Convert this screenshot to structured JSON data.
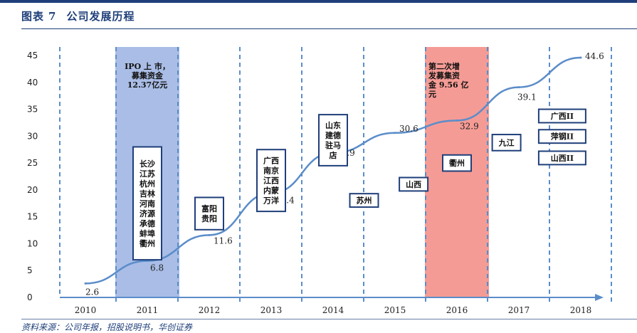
{
  "figure": {
    "label": "图表",
    "number": "7",
    "title": "公司发展历程"
  },
  "source": "资料来源：公司年报，招股说明书，华创证券",
  "colors": {
    "title": "#1f3f7a",
    "line": "#5b8dc9",
    "grid": "#5b8dc9",
    "highlight_blue": "#a9bde6",
    "highlight_red": "#f59b95",
    "box_border": "#1f3f7a"
  },
  "chart_data": {
    "type": "line",
    "title": "",
    "xlabel": "",
    "ylabel": "",
    "x": [
      2010,
      2011,
      2012,
      2013,
      2014,
      2015,
      2016,
      2017,
      2018
    ],
    "xlim": [
      2010,
      2018
    ],
    "ylim": [
      0,
      45
    ],
    "yticks": [
      0,
      5,
      10,
      15,
      20,
      25,
      30,
      35,
      40,
      45
    ],
    "grid": "vertical dashed lines per year",
    "series": [
      {
        "values": [
          2.6,
          6.8,
          11.6,
          19.4,
          26.9,
          30.6,
          32.9,
          39.1,
          44.6
        ],
        "labels": [
          "2.6",
          "6.8",
          "11.6",
          "19.4",
          "26.9",
          "30.6",
          "32.9",
          "39.1",
          "44.6"
        ]
      }
    ],
    "highlights": [
      {
        "year": 2011,
        "color": "blue",
        "text": [
          "IPO 上 市，",
          "募集资金",
          "12.37亿元"
        ]
      },
      {
        "year": 2016,
        "color": "red",
        "text": [
          "第二次增",
          "发募集资",
          "金 9.56 亿",
          "元"
        ]
      }
    ],
    "annotations": [
      {
        "year": 2011,
        "y_range": [
          7,
          28
        ],
        "lines": [
          "长沙",
          "江苏",
          "杭州",
          "吉林",
          "河南",
          "济源",
          "承德",
          "蚌埠",
          "衢州"
        ]
      },
      {
        "year": 2012,
        "y_range": [
          12.6,
          18.6
        ],
        "lines": [
          "富阳",
          "贵阳"
        ]
      },
      {
        "year": 2013,
        "y_range": [
          16,
          27.5
        ],
        "lines": [
          "广西",
          "南京",
          "江西",
          "内蒙",
          "万洋"
        ]
      },
      {
        "year": 2014,
        "y_range": [
          24.5,
          34
        ],
        "lines": [
          "山东",
          "建德",
          "驻马",
          "店"
        ]
      },
      {
        "year": 2014.5,
        "y_range": [
          16.8,
          19.3
        ],
        "lines": [
          "苏州"
        ]
      },
      {
        "year": 2015.3,
        "y_range": [
          19.8,
          22.3
        ],
        "lines": [
          "山西"
        ]
      },
      {
        "year": 2016,
        "y_range": [
          23.5,
          26.5
        ],
        "lines": [
          "衢州"
        ]
      },
      {
        "year": 2016.8,
        "y_range": [
          27.3,
          30.3
        ],
        "lines": [
          "九江"
        ]
      },
      {
        "year": 2017.7,
        "y_range": [
          32.5,
          35
        ],
        "lines": [
          "广西II"
        ]
      },
      {
        "year": 2017.7,
        "y_range": [
          28.7,
          31.2
        ],
        "lines": [
          "萍钢II"
        ]
      },
      {
        "year": 2017.7,
        "y_range": [
          24.7,
          27.2
        ],
        "lines": [
          "山西II"
        ]
      }
    ]
  }
}
